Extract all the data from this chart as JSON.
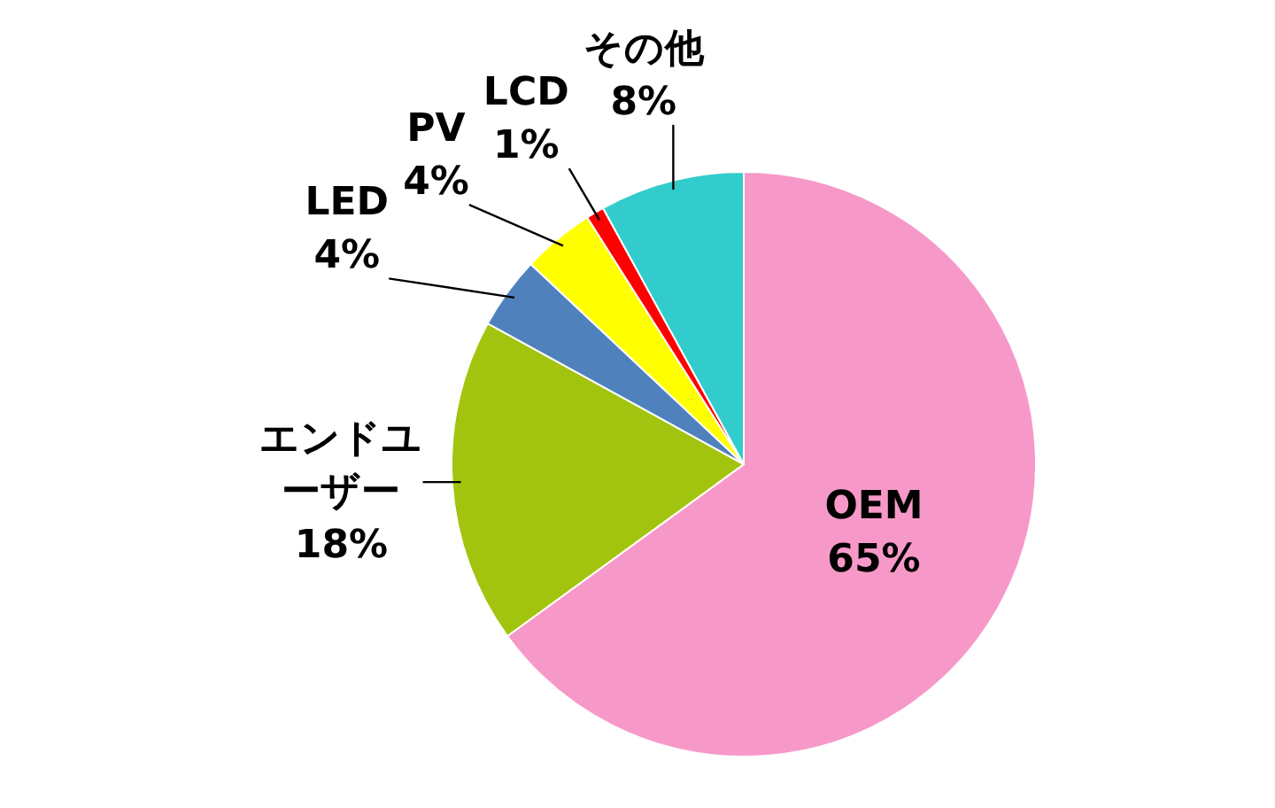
{
  "chart_data": {
    "type": "pie",
    "categories": [
      "OEM",
      "エンドユーザー",
      "LED",
      "PV",
      "LCD",
      "その他"
    ],
    "values": [
      65,
      18,
      4,
      4,
      1,
      8
    ],
    "colors": [
      "#f799c8",
      "#a3c40f",
      "#4f81bd",
      "#ffff00",
      "#ff0000",
      "#33cccc"
    ],
    "value_labels": [
      "65%",
      "18%",
      "4%",
      "4%",
      "1%",
      "8%"
    ]
  }
}
